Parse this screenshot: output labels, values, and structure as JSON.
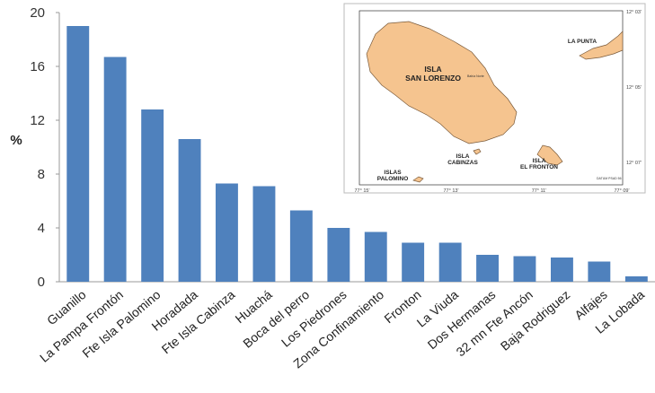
{
  "chart_data": {
    "type": "bar",
    "ylabel": "%",
    "ylim": [
      0,
      20
    ],
    "yticks": [
      0,
      4,
      8,
      12,
      16,
      20
    ],
    "categories": [
      "Guanillo",
      "La Pampa Frontón",
      "Fte Isla Palomino",
      "Horadada",
      "Fte Isla Cabinza",
      "Huachá",
      "Boca del perro",
      "Los Piedrones",
      "Zona Confinamiento",
      "Fronton",
      "La Viuda",
      "Dos Hermanas",
      "32 mn Fte Ancón",
      "Baja Rodriguez",
      "Alfajes",
      "La Lobada"
    ],
    "values": [
      19.0,
      16.7,
      12.8,
      10.6,
      7.3,
      7.1,
      5.3,
      4.0,
      3.7,
      2.9,
      2.9,
      2.0,
      1.9,
      1.8,
      1.5,
      0.4
    ],
    "grid": false,
    "bar_color": "#4f81bd"
  },
  "map": {
    "labels": {
      "la_punta": "LA PUNTA",
      "isla_san_lorenzo_1": "ISLA",
      "isla_san_lorenzo_2": "SAN LORENZO",
      "isla_cabinzas_1": "ISLA",
      "isla_cabinzas_2": "CABINZAS",
      "isla_el_fronton_1": "ISLA",
      "isla_el_fronton_2": "EL FRONTON",
      "islas_palomino_1": "ISLAS",
      "islas_palomino_2": "PALOMINO"
    },
    "lat_ticks": [
      "12° 03'",
      "12° 05'",
      "12° 07'"
    ],
    "lon_ticks": [
      "77° 15'",
      "77° 13'",
      "77° 11'",
      "77° 09'"
    ],
    "small_note": "Bahía Norte",
    "credit": "DATUM PSAD 56",
    "land_color": "#f5c48f",
    "water_color": "#ffffff"
  }
}
